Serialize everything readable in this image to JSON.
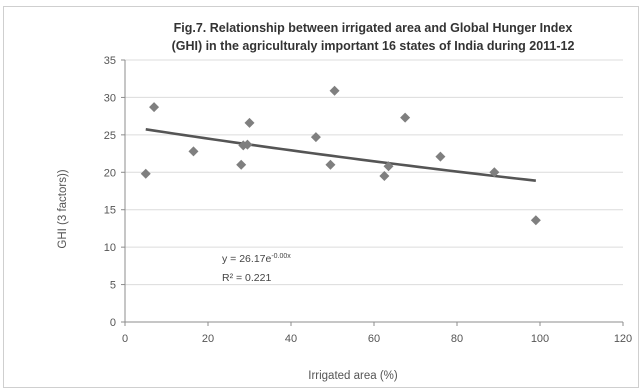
{
  "chart_data": {
    "type": "scatter",
    "title_lines": [
      "Fig.7. Relationship between irrigated area and Global Hunger Index",
      "(GHI) in the agriculturaly important 16 states of India during 2011-12"
    ],
    "xlabel": "Irrigated area (%)",
    "ylabel": "GHI (3 factors))",
    "xlim": [
      0,
      120
    ],
    "ylim": [
      0,
      35
    ],
    "x_ticks": [
      0,
      20,
      40,
      60,
      80,
      100,
      120
    ],
    "y_ticks": [
      0,
      5,
      10,
      15,
      20,
      25,
      30,
      35
    ],
    "grid": "horizontal",
    "marker": "diamond",
    "marker_color": "#7f7f7f",
    "trend_color": "#555555",
    "points": [
      {
        "x": 5,
        "y": 19.8
      },
      {
        "x": 7,
        "y": 28.7
      },
      {
        "x": 16.5,
        "y": 22.8
      },
      {
        "x": 28,
        "y": 21.0
      },
      {
        "x": 28.5,
        "y": 23.6
      },
      {
        "x": 29.5,
        "y": 23.7
      },
      {
        "x": 30,
        "y": 26.6
      },
      {
        "x": 46,
        "y": 24.7
      },
      {
        "x": 49.5,
        "y": 21.0
      },
      {
        "x": 50.5,
        "y": 30.9
      },
      {
        "x": 62.5,
        "y": 19.5
      },
      {
        "x": 63.5,
        "y": 20.8
      },
      {
        "x": 67.5,
        "y": 27.3
      },
      {
        "x": 76,
        "y": 22.1
      },
      {
        "x": 89,
        "y": 20.0
      },
      {
        "x": 99,
        "y": 13.6
      }
    ],
    "trendline": {
      "type": "exponential",
      "a": 26.17,
      "b": -0.0033,
      "x_range": [
        5,
        99
      ],
      "equation_base": "y = 26.17e",
      "equation_exp": "-0.00x",
      "r2": "R² = 0.221"
    }
  }
}
